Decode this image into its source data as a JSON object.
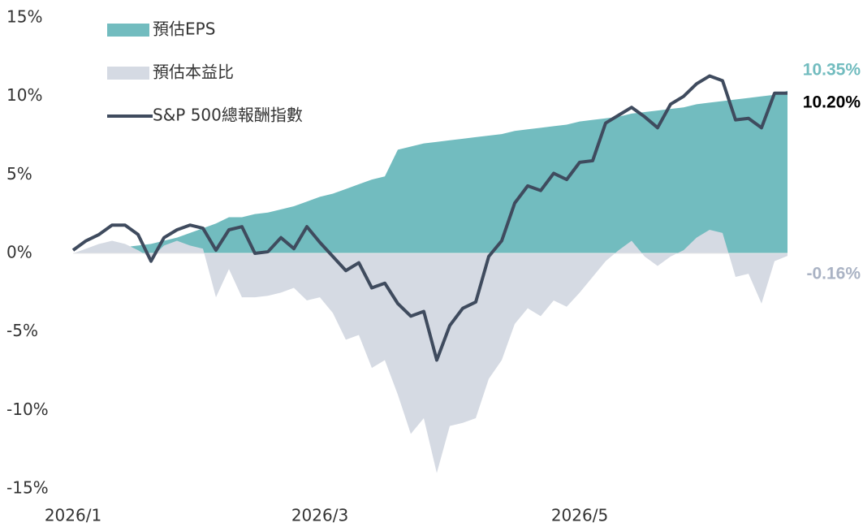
{
  "chart_data": {
    "type": "area_line",
    "categories": [
      "2026/1",
      null,
      null,
      null,
      null,
      null,
      null,
      null,
      null,
      null,
      null,
      null,
      null,
      null,
      null,
      null,
      null,
      null,
      null,
      "2026/3",
      null,
      null,
      null,
      null,
      null,
      null,
      null,
      null,
      null,
      null,
      null,
      null,
      null,
      null,
      null,
      null,
      null,
      null,
      null,
      "2026/5",
      null,
      null,
      null,
      null,
      null,
      null,
      null,
      null,
      null,
      null,
      null,
      null,
      null,
      null,
      null,
      null
    ],
    "ylim": [
      -15,
      15
    ],
    "yticks": [
      {
        "value": -15,
        "label": "-15%"
      },
      {
        "value": -10,
        "label": "-10%"
      },
      {
        "value": -5,
        "label": "-5%"
      },
      {
        "value": 0,
        "label": "0%"
      },
      {
        "value": 5,
        "label": "5%"
      },
      {
        "value": 10,
        "label": "10%"
      },
      {
        "value": 15,
        "label": "15%"
      }
    ],
    "series": [
      {
        "name": "預估EPS",
        "kind": "area",
        "color": "#72bcbf",
        "values": [
          0,
          0.1,
          0.2,
          0.3,
          0.4,
          0.5,
          0.6,
          0.8,
          1.0,
          1.3,
          1.6,
          1.9,
          2.3,
          2.3,
          2.5,
          2.6,
          2.8,
          3.0,
          3.3,
          3.6,
          3.8,
          4.1,
          4.4,
          4.7,
          4.9,
          6.6,
          6.8,
          7.0,
          7.1,
          7.2,
          7.3,
          7.4,
          7.5,
          7.6,
          7.8,
          7.9,
          8.0,
          8.1,
          8.2,
          8.4,
          8.5,
          8.6,
          8.7,
          8.9,
          9.0,
          9.1,
          9.2,
          9.3,
          9.5,
          9.6,
          9.7,
          9.8,
          9.9,
          10.0,
          10.1,
          10.35
        ],
        "value_labels": [
          null,
          null,
          null,
          null,
          null,
          null,
          null,
          null,
          null,
          null,
          null,
          null,
          null,
          null,
          null,
          null,
          null,
          null,
          null,
          null,
          null,
          null,
          null,
          null,
          null,
          null,
          null,
          null,
          null,
          null,
          null,
          null,
          null,
          null,
          null,
          null,
          null,
          null,
          null,
          null,
          null,
          null,
          null,
          null,
          null,
          null,
          null,
          null,
          null,
          null,
          null,
          null,
          null,
          null,
          null,
          "10.35%"
        ]
      },
      {
        "name": "預估本益比",
        "kind": "area",
        "color": "#d5dae3",
        "values": [
          0,
          0.3,
          0.6,
          0.8,
          0.6,
          0.2,
          -0.3,
          0.5,
          0.8,
          0.5,
          0.3,
          -2.8,
          -1.0,
          -2.8,
          -2.8,
          -2.7,
          -2.5,
          -2.2,
          -3,
          -2.8,
          -3.8,
          -5.5,
          -5.2,
          -7.3,
          -6.8,
          -9,
          -11.5,
          -10.5,
          -14,
          -11,
          -10.8,
          -10.5,
          -8,
          -6.8,
          -4.5,
          -3.5,
          -4,
          -3,
          -3.4,
          -2.5,
          -1.5,
          -0.5,
          0.2,
          0.8,
          -0.2,
          -0.8,
          -0.2,
          0.2,
          1.0,
          1.5,
          1.3,
          -1.5,
          -1.3,
          -3.2,
          -0.5,
          -0.16
        ],
        "value_labels": [
          null,
          null,
          null,
          null,
          null,
          null,
          null,
          null,
          null,
          null,
          null,
          null,
          null,
          null,
          null,
          null,
          null,
          null,
          null,
          null,
          null,
          null,
          null,
          null,
          null,
          null,
          null,
          null,
          null,
          null,
          null,
          null,
          null,
          null,
          null,
          null,
          null,
          null,
          null,
          null,
          null,
          null,
          null,
          null,
          null,
          null,
          null,
          null,
          null,
          null,
          null,
          null,
          null,
          null,
          null,
          "-0.16%"
        ]
      },
      {
        "name": "S&P 500總報酬指數",
        "kind": "line",
        "color": "#3f4b5e",
        "values": [
          0.2,
          0.8,
          1.2,
          1.8,
          1.8,
          1.2,
          -0.5,
          1.0,
          1.5,
          1.8,
          1.6,
          0.2,
          1.5,
          1.7,
          0,
          0.1,
          1,
          0.3,
          1.7,
          0.7,
          -0.2,
          -1.1,
          -0.6,
          -2.2,
          -1.9,
          -3.2,
          -4,
          -3.7,
          -6.8,
          -4.6,
          -3.5,
          -3.1,
          -0.2,
          0.8,
          3.2,
          4.3,
          4.0,
          5.1,
          4.7,
          5.8,
          5.9,
          8.3,
          8.8,
          9.3,
          8.7,
          8.0,
          9.5,
          10,
          10.8,
          11.3,
          11.0,
          8.5,
          8.6,
          8.0,
          10.2,
          10.2
        ],
        "value_labels": [
          null,
          null,
          null,
          null,
          null,
          null,
          null,
          null,
          null,
          null,
          null,
          null,
          null,
          null,
          null,
          null,
          null,
          null,
          null,
          null,
          null,
          null,
          null,
          null,
          null,
          null,
          null,
          null,
          null,
          null,
          null,
          null,
          null,
          null,
          null,
          null,
          null,
          null,
          null,
          null,
          null,
          null,
          null,
          null,
          null,
          null,
          null,
          null,
          null,
          null,
          null,
          null,
          null,
          null,
          null,
          "10.20%"
        ]
      }
    ]
  }
}
